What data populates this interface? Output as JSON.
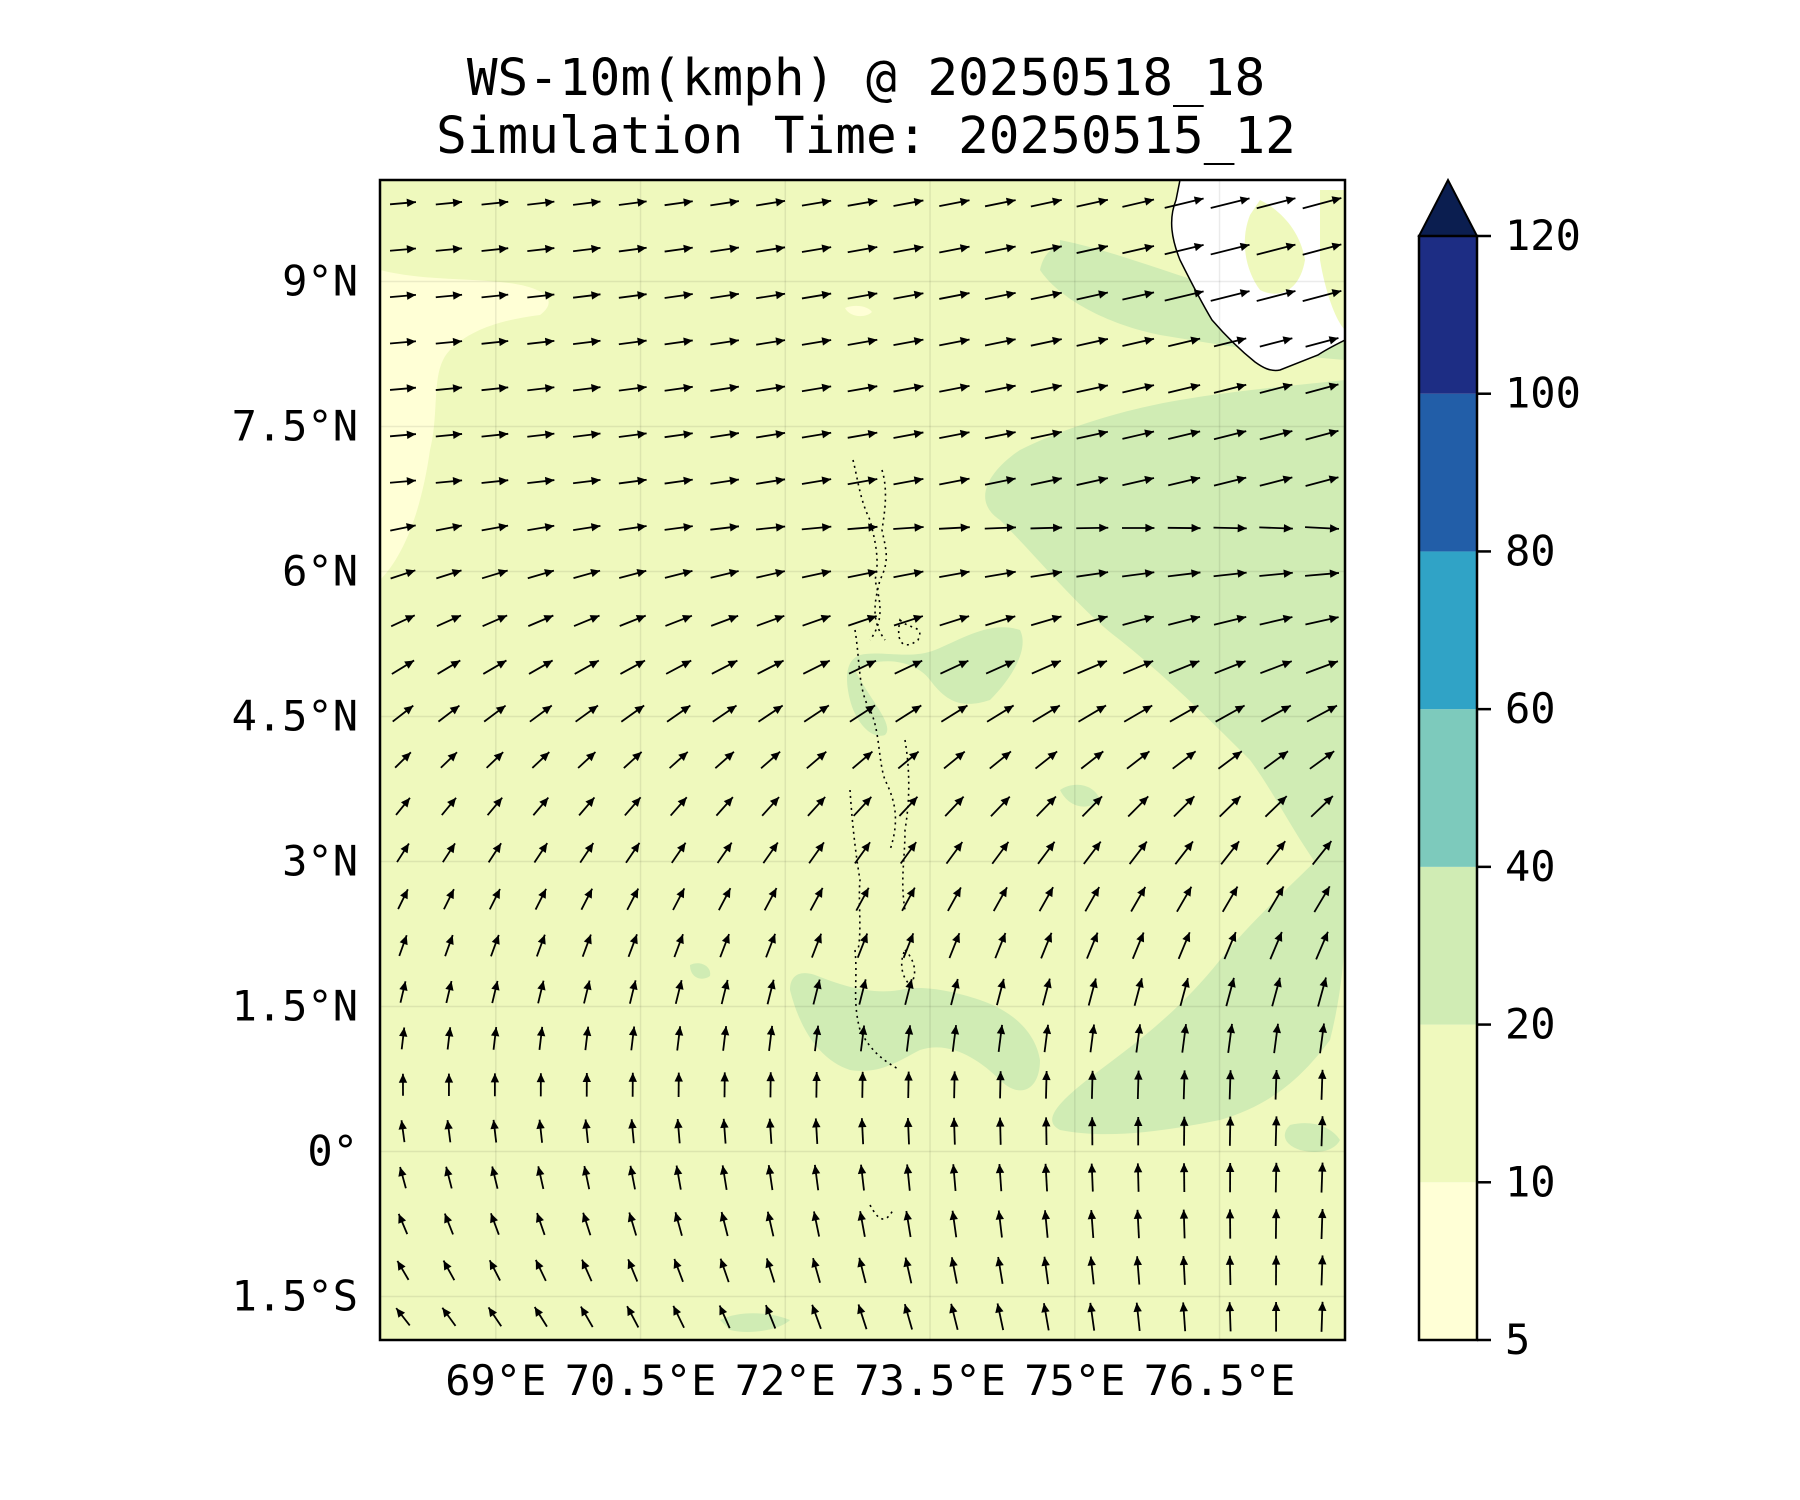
{
  "title": {
    "line1": "WS-10m(kmph) @ 20250518_18",
    "line2": "Simulation Time: 20250515_12"
  },
  "map": {
    "lon_range": [
      67.8,
      77.8
    ],
    "lat_range": [
      -1.95,
      10.05
    ],
    "lon_ticks": [
      {
        "value": 69.0,
        "label": "69°E"
      },
      {
        "value": 70.5,
        "label": "70.5°E"
      },
      {
        "value": 72.0,
        "label": "72°E"
      },
      {
        "value": 73.5,
        "label": "73.5°E"
      },
      {
        "value": 75.0,
        "label": "75°E"
      },
      {
        "value": 76.5,
        "label": "76.5°E"
      }
    ],
    "lat_ticks": [
      {
        "value": 9.0,
        "label": "9°N"
      },
      {
        "value": 7.5,
        "label": "7.5°N"
      },
      {
        "value": 6.0,
        "label": "6°N"
      },
      {
        "value": 4.5,
        "label": "4.5°N"
      },
      {
        "value": 3.0,
        "label": "3°N"
      },
      {
        "value": 1.5,
        "label": "1.5°N"
      },
      {
        "value": 0.0,
        "label": "0°"
      },
      {
        "value": -1.5,
        "label": "1.5°S"
      }
    ],
    "gridlines": true,
    "land_region": "southern India (top-right corner)"
  },
  "colorbar": {
    "levels": [
      5,
      10,
      20,
      40,
      60,
      80,
      100,
      120
    ],
    "labels": [
      "5",
      "10",
      "20",
      "40",
      "60",
      "80",
      "100",
      "120"
    ],
    "colors": [
      "#ffffd6",
      "#eff9bd",
      "#d0ecb4",
      "#7dcabc",
      "#30a3c6",
      "#225ea8",
      "#1d2d84"
    ],
    "extend_color": "#0b1e50",
    "extend": "max"
  },
  "field_colors": {
    "land": "#ffffff",
    "coastline": "#000000",
    "arrow": "#000000"
  }
}
